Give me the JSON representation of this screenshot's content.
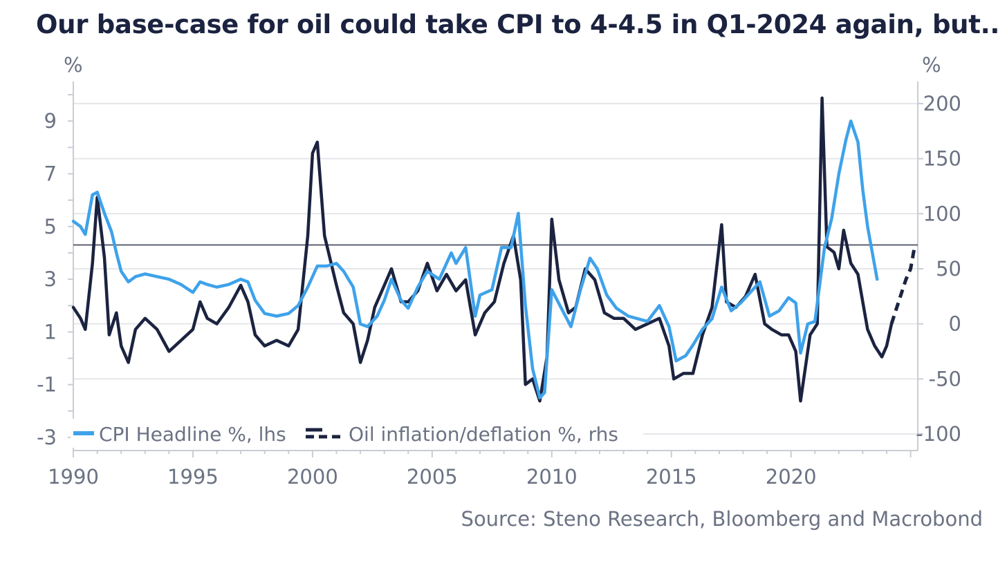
{
  "chart_data": {
    "type": "line",
    "title": "Our base-case for oil could take CPI to 4-4.5 in Q1-2024 again, but..",
    "left_axis": {
      "unit": "%",
      "ylim": [
        -3.5,
        10.5
      ],
      "ticks": [
        9,
        7,
        5,
        3,
        1,
        -1,
        -3
      ],
      "tick_labels": [
        "9",
        "7",
        "5",
        "3",
        "1",
        "-1",
        "-3"
      ]
    },
    "right_axis": {
      "unit": "%",
      "ylim": [
        -115,
        220
      ],
      "ticks": [
        200,
        150,
        100,
        50,
        0,
        -50,
        -100
      ],
      "tick_labels": [
        "200",
        "150",
        "100",
        "50",
        "0",
        "-50",
        "-100"
      ]
    },
    "x_axis": {
      "xlim": [
        1990,
        2025.3
      ],
      "ticks": [
        1990,
        1995,
        2000,
        2005,
        2010,
        2015,
        2020
      ],
      "tick_labels": [
        "1990",
        "1995",
        "2000",
        "2005",
        "2010",
        "2015",
        "2020"
      ]
    },
    "reference_line": {
      "axis": "left",
      "value": 4.3
    },
    "grid": true,
    "legend_placement": "bottom-left",
    "series": [
      {
        "name": "CPI Headline %, lhs",
        "axis": "left",
        "color": "#3ea2ea",
        "style": "solid",
        "points": [
          [
            1990.0,
            5.2
          ],
          [
            1990.3,
            5.0
          ],
          [
            1990.5,
            4.7
          ],
          [
            1990.8,
            6.2
          ],
          [
            1991.0,
            6.3
          ],
          [
            1991.3,
            5.5
          ],
          [
            1991.6,
            4.8
          ],
          [
            1991.8,
            4.0
          ],
          [
            1992.0,
            3.3
          ],
          [
            1992.3,
            2.9
          ],
          [
            1992.6,
            3.1
          ],
          [
            1993.0,
            3.2
          ],
          [
            1993.5,
            3.1
          ],
          [
            1994.0,
            3.0
          ],
          [
            1994.5,
            2.8
          ],
          [
            1995.0,
            2.5
          ],
          [
            1995.3,
            2.9
          ],
          [
            1995.6,
            2.8
          ],
          [
            1996.0,
            2.7
          ],
          [
            1996.5,
            2.8
          ],
          [
            1997.0,
            3.0
          ],
          [
            1997.3,
            2.9
          ],
          [
            1997.6,
            2.2
          ],
          [
            1998.0,
            1.7
          ],
          [
            1998.5,
            1.6
          ],
          [
            1999.0,
            1.7
          ],
          [
            1999.4,
            2.0
          ],
          [
            1999.8,
            2.7
          ],
          [
            2000.2,
            3.5
          ],
          [
            2000.6,
            3.5
          ],
          [
            2001.0,
            3.6
          ],
          [
            2001.3,
            3.3
          ],
          [
            2001.7,
            2.7
          ],
          [
            2002.0,
            1.3
          ],
          [
            2002.3,
            1.2
          ],
          [
            2002.7,
            1.6
          ],
          [
            2003.0,
            2.2
          ],
          [
            2003.3,
            3.0
          ],
          [
            2003.7,
            2.2
          ],
          [
            2004.0,
            1.9
          ],
          [
            2004.4,
            2.7
          ],
          [
            2004.8,
            3.3
          ],
          [
            2005.3,
            3.0
          ],
          [
            2005.8,
            4.0
          ],
          [
            2006.0,
            3.6
          ],
          [
            2006.4,
            4.2
          ],
          [
            2006.8,
            1.6
          ],
          [
            2007.0,
            2.4
          ],
          [
            2007.5,
            2.6
          ],
          [
            2007.9,
            4.2
          ],
          [
            2008.3,
            4.2
          ],
          [
            2008.6,
            5.5
          ],
          [
            2008.9,
            2.0
          ],
          [
            2009.2,
            -0.4
          ],
          [
            2009.5,
            -1.5
          ],
          [
            2009.7,
            -1.3
          ],
          [
            2010.0,
            2.6
          ],
          [
            2010.4,
            1.9
          ],
          [
            2010.8,
            1.2
          ],
          [
            2011.2,
            2.6
          ],
          [
            2011.6,
            3.8
          ],
          [
            2011.9,
            3.4
          ],
          [
            2012.3,
            2.4
          ],
          [
            2012.7,
            1.9
          ],
          [
            2013.2,
            1.6
          ],
          [
            2013.6,
            1.5
          ],
          [
            2014.0,
            1.4
          ],
          [
            2014.5,
            2.0
          ],
          [
            2014.9,
            1.2
          ],
          [
            2015.2,
            -0.1
          ],
          [
            2015.6,
            0.1
          ],
          [
            2015.9,
            0.5
          ],
          [
            2016.3,
            1.1
          ],
          [
            2016.7,
            1.5
          ],
          [
            2017.1,
            2.7
          ],
          [
            2017.5,
            1.8
          ],
          [
            2017.9,
            2.1
          ],
          [
            2018.3,
            2.5
          ],
          [
            2018.7,
            2.9
          ],
          [
            2019.1,
            1.6
          ],
          [
            2019.5,
            1.8
          ],
          [
            2019.9,
            2.3
          ],
          [
            2020.2,
            2.1
          ],
          [
            2020.4,
            0.2
          ],
          [
            2020.7,
            1.3
          ],
          [
            2021.0,
            1.4
          ],
          [
            2021.4,
            4.2
          ],
          [
            2021.7,
            5.3
          ],
          [
            2022.0,
            7.0
          ],
          [
            2022.3,
            8.3
          ],
          [
            2022.5,
            9.0
          ],
          [
            2022.8,
            8.2
          ],
          [
            2023.0,
            6.4
          ],
          [
            2023.2,
            5.0
          ],
          [
            2023.4,
            4.0
          ],
          [
            2023.6,
            3.0
          ]
        ]
      },
      {
        "name": "Oil inflation/deflation %, rhs",
        "axis": "right",
        "color": "#1b2340",
        "style": "solid",
        "points": [
          [
            1990.0,
            15
          ],
          [
            1990.3,
            5
          ],
          [
            1990.5,
            -5
          ],
          [
            1990.8,
            55
          ],
          [
            1991.0,
            115
          ],
          [
            1991.3,
            60
          ],
          [
            1991.5,
            -10
          ],
          [
            1991.8,
            10
          ],
          [
            1992.0,
            -20
          ],
          [
            1992.3,
            -35
          ],
          [
            1992.6,
            -5
          ],
          [
            1993.0,
            5
          ],
          [
            1993.5,
            -5
          ],
          [
            1994.0,
            -25
          ],
          [
            1994.5,
            -15
          ],
          [
            1995.0,
            -5
          ],
          [
            1995.3,
            20
          ],
          [
            1995.6,
            5
          ],
          [
            1996.0,
            0
          ],
          [
            1996.5,
            15
          ],
          [
            1997.0,
            35
          ],
          [
            1997.3,
            20
          ],
          [
            1997.6,
            -10
          ],
          [
            1998.0,
            -20
          ],
          [
            1998.5,
            -15
          ],
          [
            1999.0,
            -20
          ],
          [
            1999.4,
            -5
          ],
          [
            1999.8,
            80
          ],
          [
            2000.0,
            155
          ],
          [
            2000.2,
            165
          ],
          [
            2000.5,
            80
          ],
          [
            2001.0,
            35
          ],
          [
            2001.3,
            10
          ],
          [
            2001.7,
            0
          ],
          [
            2002.0,
            -35
          ],
          [
            2002.3,
            -15
          ],
          [
            2002.6,
            15
          ],
          [
            2003.0,
            35
          ],
          [
            2003.3,
            50
          ],
          [
            2003.7,
            20
          ],
          [
            2004.0,
            20
          ],
          [
            2004.4,
            30
          ],
          [
            2004.8,
            55
          ],
          [
            2005.2,
            30
          ],
          [
            2005.6,
            45
          ],
          [
            2006.0,
            30
          ],
          [
            2006.4,
            40
          ],
          [
            2006.8,
            -10
          ],
          [
            2007.2,
            10
          ],
          [
            2007.6,
            20
          ],
          [
            2008.0,
            55
          ],
          [
            2008.4,
            80
          ],
          [
            2008.7,
            40
          ],
          [
            2008.9,
            -55
          ],
          [
            2009.2,
            -50
          ],
          [
            2009.5,
            -70
          ],
          [
            2009.8,
            -30
          ],
          [
            2010.0,
            95
          ],
          [
            2010.3,
            40
          ],
          [
            2010.7,
            10
          ],
          [
            2011.0,
            15
          ],
          [
            2011.4,
            50
          ],
          [
            2011.8,
            40
          ],
          [
            2012.2,
            10
          ],
          [
            2012.6,
            5
          ],
          [
            2013.0,
            5
          ],
          [
            2013.5,
            -5
          ],
          [
            2014.0,
            0
          ],
          [
            2014.5,
            5
          ],
          [
            2014.9,
            -20
          ],
          [
            2015.1,
            -50
          ],
          [
            2015.5,
            -45
          ],
          [
            2015.9,
            -45
          ],
          [
            2016.3,
            -10
          ],
          [
            2016.7,
            15
          ],
          [
            2017.1,
            90
          ],
          [
            2017.3,
            20
          ],
          [
            2017.7,
            15
          ],
          [
            2018.1,
            25
          ],
          [
            2018.5,
            45
          ],
          [
            2018.9,
            0
          ],
          [
            2019.2,
            -5
          ],
          [
            2019.6,
            -10
          ],
          [
            2019.9,
            -10
          ],
          [
            2020.2,
            -25
          ],
          [
            2020.4,
            -70
          ],
          [
            2020.8,
            -10
          ],
          [
            2021.1,
            0
          ],
          [
            2021.3,
            205
          ],
          [
            2021.5,
            70
          ],
          [
            2021.8,
            65
          ],
          [
            2022.0,
            50
          ],
          [
            2022.2,
            85
          ],
          [
            2022.5,
            55
          ],
          [
            2022.8,
            45
          ],
          [
            2023.0,
            20
          ],
          [
            2023.2,
            -5
          ],
          [
            2023.5,
            -20
          ],
          [
            2023.8,
            -30
          ],
          [
            2024.0,
            -20
          ],
          [
            2024.2,
            0
          ]
        ]
      },
      {
        "name": "Oil inflation/deflation %, rhs (base-case)",
        "axis": "right",
        "color": "#1b2340",
        "style": "dashed",
        "points": [
          [
            2024.2,
            0
          ],
          [
            2024.5,
            20
          ],
          [
            2024.8,
            40
          ],
          [
            2025.0,
            50
          ],
          [
            2025.15,
            68
          ]
        ]
      }
    ],
    "legend": [
      {
        "label": "CPI Headline %, lhs",
        "color": "#3ea2ea",
        "style": "solid"
      },
      {
        "label": "Oil inflation/deflation %, rhs",
        "color": "#1b2340",
        "style": "solid+dashed"
      }
    ],
    "source": "Source: Steno Research, Bloomberg and Macrobond"
  }
}
